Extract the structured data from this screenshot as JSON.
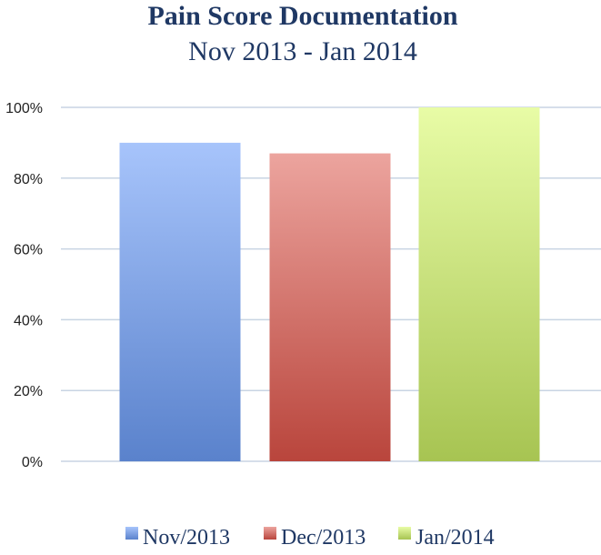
{
  "chart_data": {
    "type": "bar",
    "title": "Pain Score Documentation",
    "subtitle": "Nov 2013 - Jan 2014",
    "categories": [
      "Nov/2013",
      "Dec/2013",
      "Jan/2014"
    ],
    "values": [
      90,
      87,
      100
    ],
    "colors": {
      "Nov/2013": {
        "top": "#a7c4fb",
        "bottom": "#5a82cc"
      },
      "Dec/2013": {
        "top": "#eca49e",
        "bottom": "#b9453c"
      },
      "Jan/2014": {
        "top": "#e8fca6",
        "bottom": "#a7c452"
      }
    },
    "ylim": [
      0,
      100
    ],
    "yticks": [
      "0%",
      "20%",
      "40%",
      "60%",
      "80%",
      "100%"
    ],
    "ytick_values": [
      0,
      20,
      40,
      60,
      80,
      100
    ],
    "grid": true,
    "legend": {
      "position": "bottom",
      "entries": [
        "Nov/2013",
        "Dec/2013",
        "Jan/2014"
      ]
    }
  }
}
